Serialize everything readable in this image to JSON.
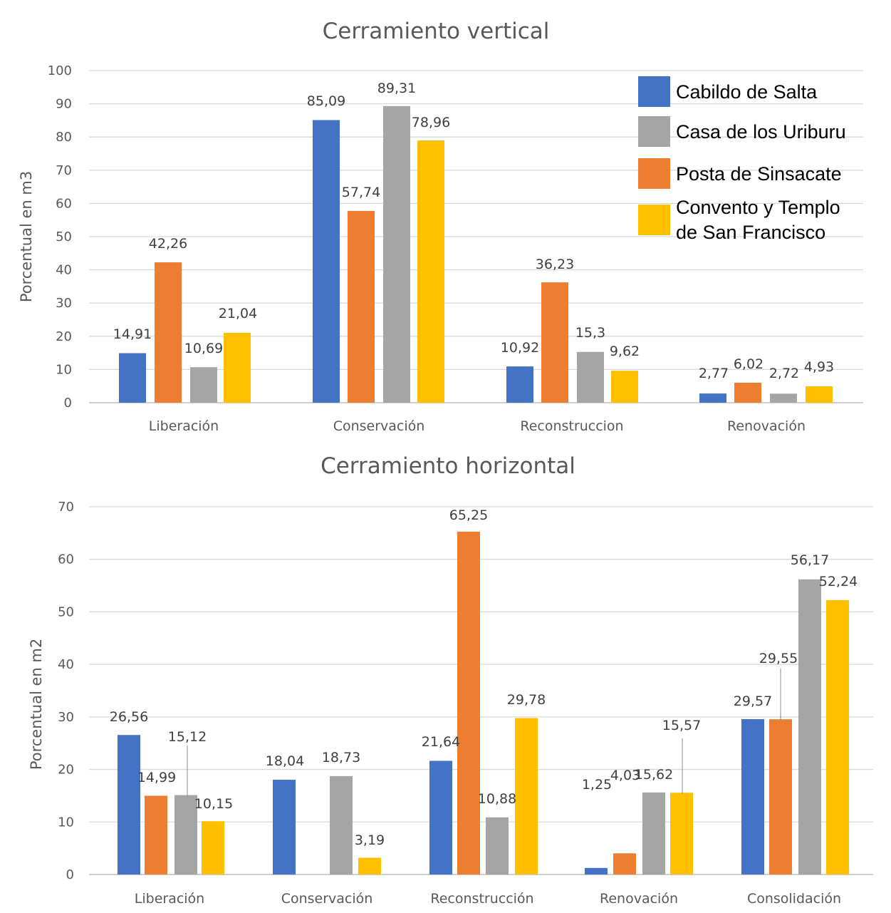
{
  "colors": {
    "Cabildo de Salta": "#4472c4",
    "Casa de los Uriburu": "#a5a5a5",
    "Posta de Sinsacate": "#ed7d31",
    "Convento y Templo de San Francisco": "#ffc000"
  },
  "legend": {
    "items": [
      {
        "lines": [
          "Cabildo de Salta"
        ],
        "color": "#4472c4"
      },
      {
        "lines": [
          "Casa de los Uriburu"
        ],
        "color": "#a5a5a5"
      },
      {
        "lines": [
          "Posta de Sinsacate"
        ],
        "color": "#ed7d31"
      },
      {
        "lines": [
          "Convento y Templo",
          "de San Francisco"
        ],
        "color": "#ffc000"
      }
    ]
  },
  "chart_data": [
    {
      "type": "bar",
      "title": "Cerramiento vertical",
      "xlabel": "",
      "ylabel": "Porcentual en m3",
      "ylim": [
        0,
        100
      ],
      "yticks": [
        0,
        10,
        20,
        30,
        40,
        50,
        60,
        70,
        80,
        90,
        100
      ],
      "grid": true,
      "legend_position": "top-right",
      "categories": [
        "Liberación",
        "Conservación",
        "Reconstruccion",
        "Renovación"
      ],
      "series": [
        {
          "name": "Cabildo de Salta",
          "values": [
            14.91,
            85.09,
            10.92,
            2.77
          ],
          "labels": [
            "14,91",
            "85,09",
            "10,92",
            "2,77"
          ]
        },
        {
          "name": "Posta de Sinsacate",
          "values": [
            42.26,
            57.74,
            36.23,
            6.02
          ],
          "labels": [
            "42,26",
            "57,74",
            "36,23",
            "6,02"
          ]
        },
        {
          "name": "Casa de los Uriburu",
          "values": [
            10.69,
            89.31,
            15.3,
            2.72
          ],
          "labels": [
            "10,69",
            "89,31",
            "15,3",
            "2,72"
          ]
        },
        {
          "name": "Convento y Templo de San Francisco",
          "values": [
            21.04,
            78.96,
            9.62,
            4.93
          ],
          "labels": [
            "21,04",
            "78,96",
            "9,62",
            "4,93"
          ]
        }
      ]
    },
    {
      "type": "bar",
      "title": "Cerramiento horizontal",
      "xlabel": "",
      "ylabel": "Porcentual en m2",
      "ylim": [
        0,
        70
      ],
      "yticks": [
        0,
        10,
        20,
        30,
        40,
        50,
        60,
        70
      ],
      "grid": true,
      "legend_position": "",
      "categories": [
        "Liberación",
        "Conservación",
        "Reconstrucción",
        "Renovación",
        "Consolidación"
      ],
      "series": [
        {
          "name": "Cabildo de Salta",
          "values": [
            26.56,
            18.04,
            21.64,
            1.25,
            29.57
          ],
          "labels": [
            "26,56",
            "18,04",
            "21,64",
            "1,25",
            "29,57"
          ]
        },
        {
          "name": "Posta de Sinsacate",
          "values": [
            14.99,
            null,
            65.25,
            4.03,
            29.55
          ],
          "labels": [
            "14,99",
            "",
            "65,25",
            "4,03",
            "29,55"
          ]
        },
        {
          "name": "Casa de los Uriburu",
          "values": [
            15.12,
            18.73,
            10.88,
            15.62,
            56.17
          ],
          "labels": [
            "15,12",
            "18,73",
            "10,88",
            "15,62",
            "56,17"
          ]
        },
        {
          "name": "Convento y Templo de San Francisco",
          "values": [
            10.15,
            3.19,
            29.78,
            15.57,
            52.24
          ],
          "labels": [
            "10,15",
            "3,19",
            "29,78",
            "15,57",
            "52,24"
          ]
        }
      ]
    }
  ]
}
